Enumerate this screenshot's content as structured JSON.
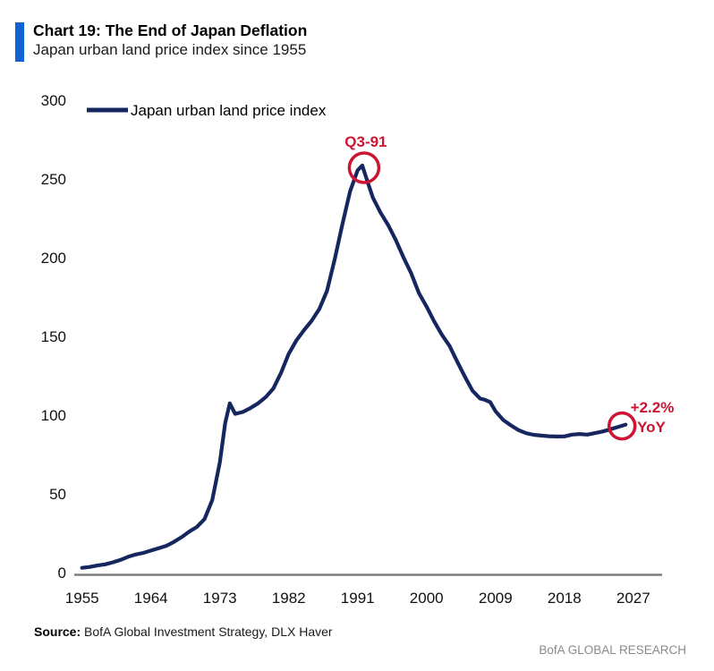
{
  "header": {
    "title": "Chart 19: The End of Japan Deflation",
    "subtitle": "Japan urban land price index since 1955"
  },
  "footer": {
    "source_label": "Source:",
    "source_text": "BofA Global Investment Strategy, DLX Haver",
    "brand": "BofA GLOBAL RESEARCH"
  },
  "colors": {
    "accent_bar": "#1162d3",
    "line": "#16265e",
    "annotation": "#cd1432",
    "axis": "#7f7f7f",
    "brand_gray": "#8a8a8a"
  },
  "chart_data": {
    "type": "line",
    "title": "Chart 19: The End of Japan Deflation",
    "subtitle": "Japan urban land price index since 1955",
    "xlabel": "",
    "ylabel": "",
    "xlim": [
      1955,
      2031
    ],
    "ylim": [
      0,
      300
    ],
    "grid": false,
    "legend_position": "top-left",
    "x_ticks": [
      1955,
      1964,
      1973,
      1982,
      1991,
      2000,
      2009,
      2018,
      2027
    ],
    "y_ticks": [
      0,
      50,
      100,
      150,
      200,
      250,
      300
    ],
    "series": [
      {
        "name": "Japan urban land price index",
        "points": [
          [
            1955,
            3
          ],
          [
            1956,
            3.6
          ],
          [
            1957,
            4.5
          ],
          [
            1958,
            5.2
          ],
          [
            1959,
            6.5
          ],
          [
            1960,
            8
          ],
          [
            1961,
            10
          ],
          [
            1962,
            11.5
          ],
          [
            1963,
            12.5
          ],
          [
            1964,
            14
          ],
          [
            1965,
            15.5
          ],
          [
            1966,
            17
          ],
          [
            1967,
            19.5
          ],
          [
            1968,
            22.5
          ],
          [
            1969,
            26
          ],
          [
            1970,
            29
          ],
          [
            1971,
            34
          ],
          [
            1972,
            46
          ],
          [
            1973,
            70
          ],
          [
            1973.7,
            95
          ],
          [
            1974.3,
            107.5
          ],
          [
            1975,
            100.8
          ],
          [
            1976,
            102
          ],
          [
            1977,
            104.5
          ],
          [
            1978,
            107.5
          ],
          [
            1979,
            111.5
          ],
          [
            1980,
            117
          ],
          [
            1981,
            127
          ],
          [
            1982,
            139
          ],
          [
            1983,
            147.5
          ],
          [
            1984,
            154
          ],
          [
            1985,
            160
          ],
          [
            1986,
            167.5
          ],
          [
            1987,
            179
          ],
          [
            1988,
            199
          ],
          [
            1989,
            221
          ],
          [
            1990,
            242
          ],
          [
            1991,
            255.5
          ],
          [
            1991.6,
            258.5
          ],
          [
            1992.3,
            248
          ],
          [
            1993,
            238
          ],
          [
            1994,
            228.5
          ],
          [
            1995,
            220.5
          ],
          [
            1996,
            211
          ],
          [
            1997,
            200
          ],
          [
            1998,
            190
          ],
          [
            1999,
            177.5
          ],
          [
            2000,
            169
          ],
          [
            2001,
            159.5
          ],
          [
            2002,
            151
          ],
          [
            2003,
            144
          ],
          [
            2004,
            134
          ],
          [
            2005,
            124.5
          ],
          [
            2006,
            115.5
          ],
          [
            2007,
            110.5
          ],
          [
            2007.6,
            109.8
          ],
          [
            2008.3,
            108.3
          ],
          [
            2009,
            102.5
          ],
          [
            2010,
            97
          ],
          [
            2011,
            93.5
          ],
          [
            2012,
            90.5
          ],
          [
            2013,
            88.5
          ],
          [
            2014,
            87.5
          ],
          [
            2015,
            87
          ],
          [
            2016,
            86.6
          ],
          [
            2017,
            86.4
          ],
          [
            2018,
            86.5
          ],
          [
            2019,
            87.6
          ],
          [
            2020,
            88
          ],
          [
            2021,
            87.6
          ],
          [
            2022,
            88.6
          ],
          [
            2023,
            89.6
          ],
          [
            2024,
            91
          ],
          [
            2025,
            92.5
          ],
          [
            2026,
            94
          ]
        ]
      }
    ],
    "annotations": [
      {
        "id": "peak",
        "label": "Q3-91",
        "year": 1991.6,
        "value": 258.5,
        "circled": true
      },
      {
        "id": "latest",
        "label": "+2.2% YoY",
        "label_lines": [
          "+2.2%",
          "YoY"
        ],
        "year": 2026,
        "value": 94,
        "circled": true
      }
    ]
  }
}
